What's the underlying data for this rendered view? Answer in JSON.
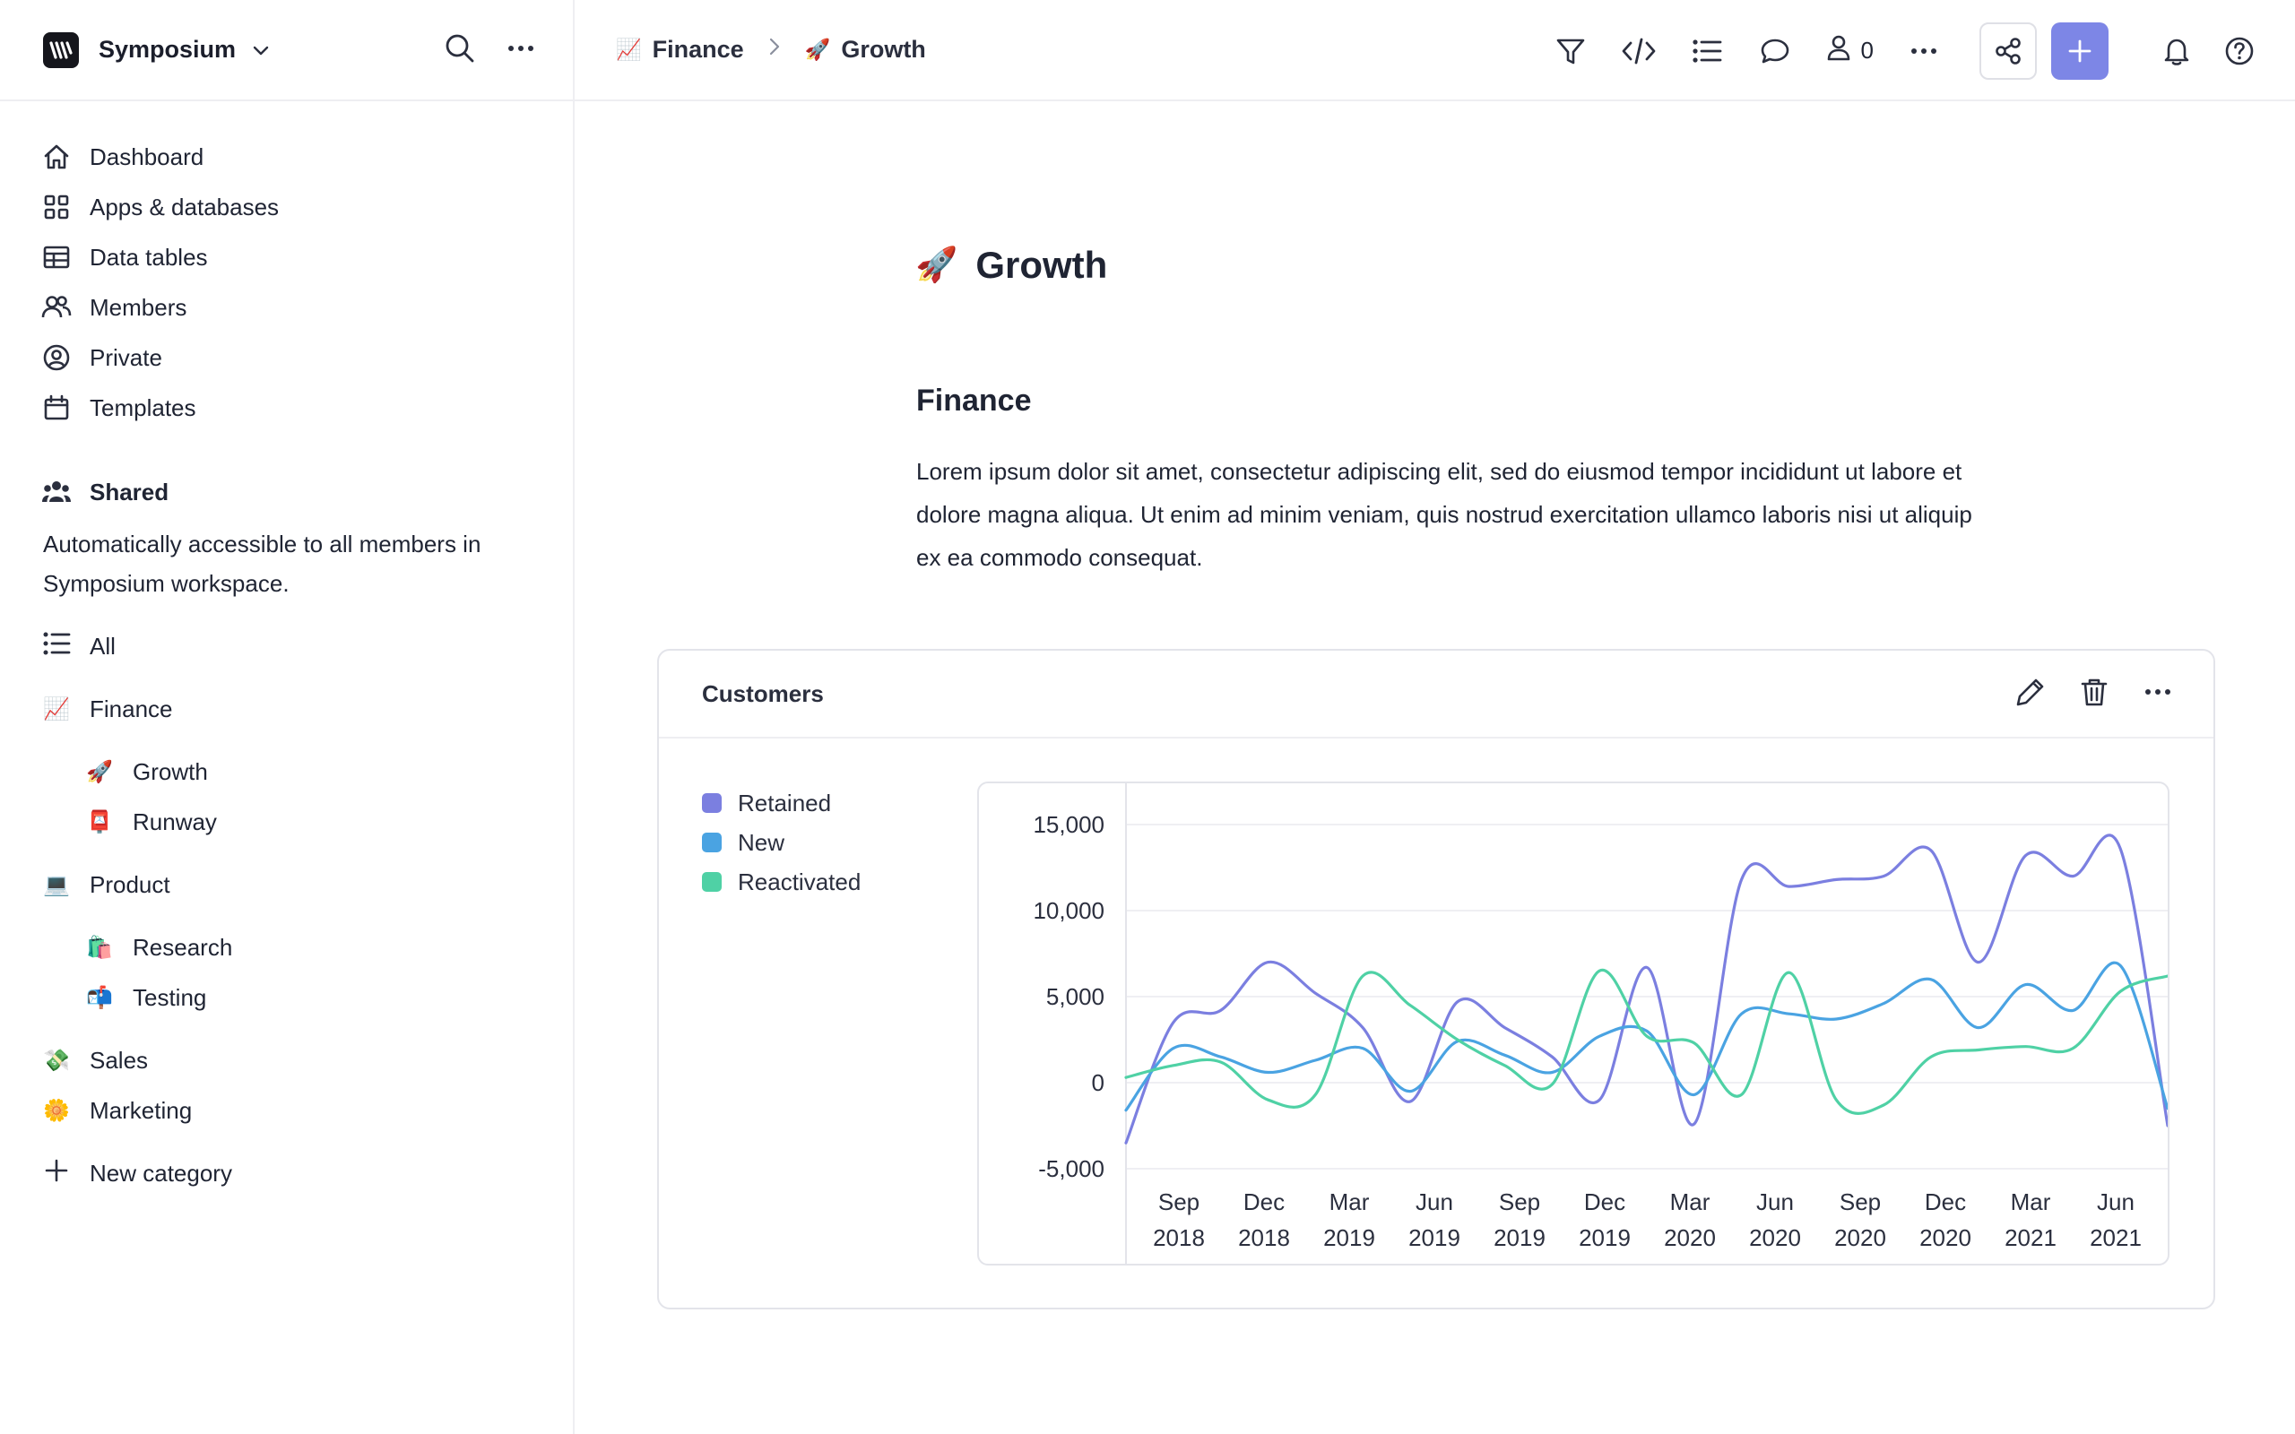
{
  "workspace": {
    "name": "Symposium"
  },
  "sidebar": {
    "nav": [
      {
        "label": "Dashboard",
        "icon": "home-icon"
      },
      {
        "label": "Apps & databases",
        "icon": "grid-icon"
      },
      {
        "label": "Data tables",
        "icon": "table-icon"
      },
      {
        "label": "Members",
        "icon": "members-icon"
      },
      {
        "label": "Private",
        "icon": "user-circle-icon"
      },
      {
        "label": "Templates",
        "icon": "templates-icon"
      }
    ],
    "shared": {
      "title": "Shared",
      "description": "Automatically accessible to all members in Symposium workspace."
    },
    "tree": {
      "all": "All",
      "finance": {
        "label": "Finance",
        "emoji": "📈"
      },
      "growth": {
        "label": "Growth",
        "emoji": "🚀"
      },
      "runway": {
        "label": "Runway",
        "emoji": "📮"
      },
      "product": {
        "label": "Product",
        "emoji": "💻"
      },
      "research": {
        "label": "Research",
        "emoji": "🛍️"
      },
      "testing": {
        "label": "Testing",
        "emoji": "📬"
      },
      "sales": {
        "label": "Sales",
        "emoji": "💸"
      },
      "marketing": {
        "label": "Marketing",
        "emoji": "🌼"
      },
      "new_category": "New category"
    }
  },
  "topbar": {
    "breadcrumb": [
      {
        "label": "Finance",
        "emoji": "📈"
      },
      {
        "label": "Growth",
        "emoji": "🚀"
      }
    ],
    "viewer_count": "0",
    "colors": {
      "add_button": "#7d86e6"
    }
  },
  "page": {
    "title": "Growth",
    "title_emoji": "🚀",
    "section_title": "Finance",
    "body": "Lorem ipsum dolor sit amet, consectetur adipiscing elit, sed do eiusmod tempor incididunt ut labore et dolore magna aliqua. Ut enim ad minim veniam, quis nostrud exercitation ullamco laboris nisi ut aliquip ex ea commodo consequat."
  },
  "card": {
    "title": "Customers"
  },
  "chart_data": {
    "type": "line",
    "title": "Customers",
    "ylim": [
      -5000,
      15000
    ],
    "yticks": [
      "15,000",
      "10,000",
      "5,000",
      "0",
      "-5,000"
    ],
    "xticks": [
      [
        "Sep",
        "2018"
      ],
      [
        "Dec",
        "2018"
      ],
      [
        "Mar",
        "2019"
      ],
      [
        "Jun",
        "2019"
      ],
      [
        "Sep",
        "2019"
      ],
      [
        "Dec",
        "2019"
      ],
      [
        "Mar",
        "2020"
      ],
      [
        "Jun",
        "2020"
      ],
      [
        "Sep",
        "2020"
      ],
      [
        "Dec",
        "2020"
      ],
      [
        "Mar",
        "2021"
      ],
      [
        "Jun",
        "2021"
      ]
    ],
    "grid": true,
    "legend_position": "left",
    "series": [
      {
        "name": "Retained",
        "color": "#7b7fe0",
        "values": [
          -3500,
          3500,
          4200,
          7000,
          5200,
          3200,
          -1100,
          4700,
          3200,
          1500,
          -1000,
          6700,
          -2400,
          11800,
          11400,
          11800,
          12000,
          13500,
          7000,
          13200,
          12000,
          13600,
          -2500
        ]
      },
      {
        "name": "New",
        "color": "#4aa3e2",
        "values": [
          -1600,
          2000,
          1500,
          600,
          1300,
          2000,
          -500,
          2400,
          1600,
          600,
          2700,
          3000,
          -700,
          4000,
          4000,
          3700,
          4600,
          6000,
          3200,
          5700,
          4200,
          6800,
          -1500
        ]
      },
      {
        "name": "Reactivated",
        "color": "#4fd1a5",
        "values": [
          300,
          1000,
          1200,
          -1000,
          -700,
          6200,
          4500,
          2500,
          1000,
          -100,
          6500,
          2700,
          2300,
          -700,
          6400,
          -1000,
          -1300,
          1500,
          1900,
          2100,
          2000,
          5300,
          6200
        ]
      }
    ]
  }
}
